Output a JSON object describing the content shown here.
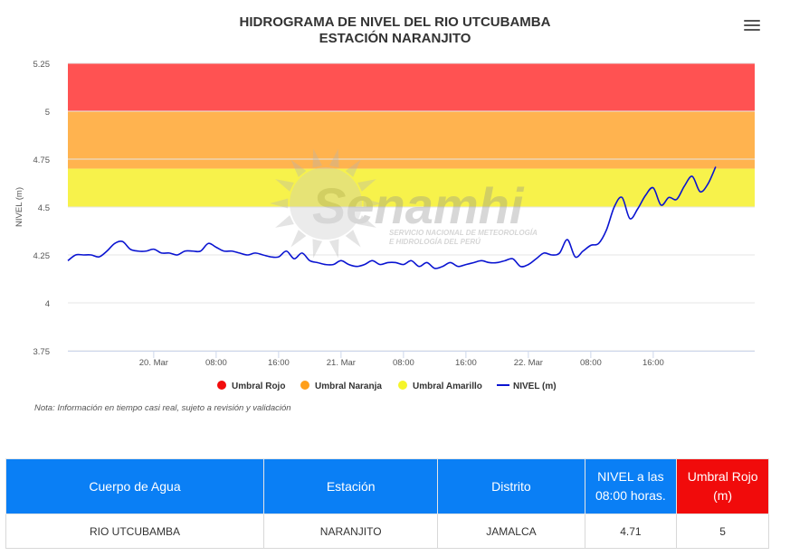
{
  "chart_data": {
    "type": "line",
    "title": "HIDROGRAMA DE NIVEL DEL RIO UTCUBAMBA",
    "subtitle": "ESTACIÓN NARANJITO",
    "ylabel": "NIVEL (m)",
    "ylim": [
      3.75,
      5.25
    ],
    "yticks": [
      "3.75",
      "4",
      "4.25",
      "4.5",
      "4.75",
      "5",
      "5.25"
    ],
    "xlim": [
      "2023-03-19 13:00",
      "2023-03-23 05:00"
    ],
    "xticks": [
      {
        "t": "2023-03-20 00:00",
        "label": "20. Mar"
      },
      {
        "t": "2023-03-20 08:00",
        "label": "08:00"
      },
      {
        "t": "2023-03-20 16:00",
        "label": "16:00"
      },
      {
        "t": "2023-03-21 00:00",
        "label": "21. Mar"
      },
      {
        "t": "2023-03-21 08:00",
        "label": "08:00"
      },
      {
        "t": "2023-03-21 16:00",
        "label": "16:00"
      },
      {
        "t": "2023-03-22 00:00",
        "label": "22. Mar"
      },
      {
        "t": "2023-03-22 08:00",
        "label": "08:00"
      },
      {
        "t": "2023-03-22 16:00",
        "label": "16:00"
      }
    ],
    "bands": [
      {
        "name": "Umbral Rojo",
        "from": 5.0,
        "to": 5.25,
        "color": "#ff5252",
        "legend_color": "#f20c0c"
      },
      {
        "name": "Umbral Naranja",
        "from": 4.7,
        "to": 5.0,
        "color": "#ffb34f",
        "legend_color": "#ff9f1a"
      },
      {
        "name": "Umbral Amarillo",
        "from": 4.5,
        "to": 4.7,
        "color": "#f7f24b",
        "legend_color": "#f5f52a"
      }
    ],
    "series": [
      {
        "name": "NIVEL (m)",
        "color": "#0a14d1",
        "points": [
          [
            "2023-03-19 13:00",
            4.22
          ],
          [
            "2023-03-19 14:00",
            4.25
          ],
          [
            "2023-03-19 15:00",
            4.25
          ],
          [
            "2023-03-19 16:00",
            4.25
          ],
          [
            "2023-03-19 17:00",
            4.24
          ],
          [
            "2023-03-19 18:00",
            4.27
          ],
          [
            "2023-03-19 19:00",
            4.31
          ],
          [
            "2023-03-19 20:00",
            4.32
          ],
          [
            "2023-03-19 21:00",
            4.28
          ],
          [
            "2023-03-19 22:00",
            4.27
          ],
          [
            "2023-03-19 23:00",
            4.27
          ],
          [
            "2023-03-20 00:00",
            4.28
          ],
          [
            "2023-03-20 01:00",
            4.26
          ],
          [
            "2023-03-20 02:00",
            4.26
          ],
          [
            "2023-03-20 03:00",
            4.25
          ],
          [
            "2023-03-20 04:00",
            4.27
          ],
          [
            "2023-03-20 05:00",
            4.27
          ],
          [
            "2023-03-20 06:00",
            4.27
          ],
          [
            "2023-03-20 07:00",
            4.31
          ],
          [
            "2023-03-20 08:00",
            4.29
          ],
          [
            "2023-03-20 09:00",
            4.27
          ],
          [
            "2023-03-20 10:00",
            4.27
          ],
          [
            "2023-03-20 11:00",
            4.26
          ],
          [
            "2023-03-20 12:00",
            4.25
          ],
          [
            "2023-03-20 13:00",
            4.26
          ],
          [
            "2023-03-20 14:00",
            4.25
          ],
          [
            "2023-03-20 15:00",
            4.24
          ],
          [
            "2023-03-20 16:00",
            4.24
          ],
          [
            "2023-03-20 17:00",
            4.27
          ],
          [
            "2023-03-20 18:00",
            4.23
          ],
          [
            "2023-03-20 19:00",
            4.26
          ],
          [
            "2023-03-20 20:00",
            4.22
          ],
          [
            "2023-03-20 21:00",
            4.21
          ],
          [
            "2023-03-20 22:00",
            4.2
          ],
          [
            "2023-03-20 23:00",
            4.2
          ],
          [
            "2023-03-21 00:00",
            4.22
          ],
          [
            "2023-03-21 01:00",
            4.2
          ],
          [
            "2023-03-21 02:00",
            4.19
          ],
          [
            "2023-03-21 03:00",
            4.2
          ],
          [
            "2023-03-21 04:00",
            4.22
          ],
          [
            "2023-03-21 05:00",
            4.2
          ],
          [
            "2023-03-21 06:00",
            4.21
          ],
          [
            "2023-03-21 07:00",
            4.21
          ],
          [
            "2023-03-21 08:00",
            4.2
          ],
          [
            "2023-03-21 09:00",
            4.22
          ],
          [
            "2023-03-21 10:00",
            4.19
          ],
          [
            "2023-03-21 11:00",
            4.21
          ],
          [
            "2023-03-21 12:00",
            4.18
          ],
          [
            "2023-03-21 13:00",
            4.19
          ],
          [
            "2023-03-21 14:00",
            4.21
          ],
          [
            "2023-03-21 15:00",
            4.19
          ],
          [
            "2023-03-21 16:00",
            4.2
          ],
          [
            "2023-03-21 17:00",
            4.21
          ],
          [
            "2023-03-21 18:00",
            4.22
          ],
          [
            "2023-03-21 19:00",
            4.21
          ],
          [
            "2023-03-21 20:00",
            4.21
          ],
          [
            "2023-03-21 21:00",
            4.22
          ],
          [
            "2023-03-21 22:00",
            4.23
          ],
          [
            "2023-03-21 23:00",
            4.19
          ],
          [
            "2023-03-22 00:00",
            4.2
          ],
          [
            "2023-03-22 01:00",
            4.23
          ],
          [
            "2023-03-22 02:00",
            4.26
          ],
          [
            "2023-03-22 03:00",
            4.25
          ],
          [
            "2023-03-22 04:00",
            4.26
          ],
          [
            "2023-03-22 05:00",
            4.33
          ],
          [
            "2023-03-22 06:00",
            4.24
          ],
          [
            "2023-03-22 07:00",
            4.27
          ],
          [
            "2023-03-22 08:00",
            4.3
          ],
          [
            "2023-03-22 09:00",
            4.31
          ],
          [
            "2023-03-22 10:00",
            4.38
          ],
          [
            "2023-03-22 11:00",
            4.5
          ],
          [
            "2023-03-22 12:00",
            4.55
          ],
          [
            "2023-03-22 13:00",
            4.44
          ],
          [
            "2023-03-22 14:00",
            4.49
          ],
          [
            "2023-03-22 15:00",
            4.56
          ],
          [
            "2023-03-22 16:00",
            4.6
          ],
          [
            "2023-03-22 17:00",
            4.51
          ],
          [
            "2023-03-22 18:00",
            4.55
          ],
          [
            "2023-03-22 19:00",
            4.54
          ],
          [
            "2023-03-22 20:00",
            4.61
          ],
          [
            "2023-03-22 21:00",
            4.66
          ],
          [
            "2023-03-22 22:00",
            4.58
          ],
          [
            "2023-03-22 23:00",
            4.62
          ],
          [
            "2023-03-23 00:00",
            4.71
          ]
        ]
      }
    ],
    "legend": [
      "Umbral Rojo",
      "Umbral Naranja",
      "Umbral Amarillo",
      "NIVEL (m)"
    ],
    "legend_position": "bottom-center",
    "grid": true
  },
  "watermark": {
    "brand": "Senamhi",
    "line1": "SERVICIO NACIONAL DE METEOROLOGÍA",
    "line2": "E HIDROLOGÍA DEL PERÚ"
  },
  "note": "Nota: Información en tiempo casi real, sujeto a revisión y validación",
  "menu_icon": "hamburger-menu-icon",
  "table": {
    "headers": [
      "Cuerpo de Agua",
      "Estación",
      "Distrito",
      "NIVEL a las 08:00 horas.",
      "Umbral Rojo (m)"
    ],
    "row": [
      "RIO UTCUBAMBA",
      "NARANJITO",
      "JAMALCA",
      "4.71",
      "5"
    ]
  }
}
